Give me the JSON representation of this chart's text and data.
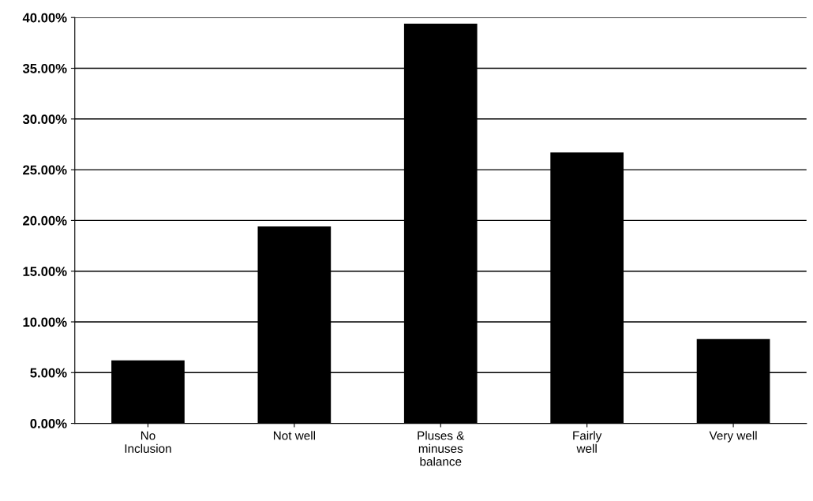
{
  "chart_data": {
    "type": "bar",
    "categories": [
      "No\nInclusion",
      "Not well",
      "Pluses &\nminuses\nbalance",
      "Fairly\nwell",
      "Very well"
    ],
    "values": [
      6.2,
      19.4,
      39.4,
      26.7,
      8.3
    ],
    "color": "#000000",
    "ylim": [
      0,
      40
    ],
    "yticks": [
      {
        "value": 0,
        "label": "0.00%"
      },
      {
        "value": 5,
        "label": "5.00%"
      },
      {
        "value": 10,
        "label": "10.00%"
      },
      {
        "value": 15,
        "label": "15.00%"
      },
      {
        "value": 20,
        "label": "20.00%"
      },
      {
        "value": 25,
        "label": "25.00%"
      },
      {
        "value": 30,
        "label": "30.00%"
      },
      {
        "value": 35,
        "label": "35.00%"
      },
      {
        "value": 40,
        "label": "40.00%"
      }
    ],
    "grid": "y",
    "legend": false
  }
}
